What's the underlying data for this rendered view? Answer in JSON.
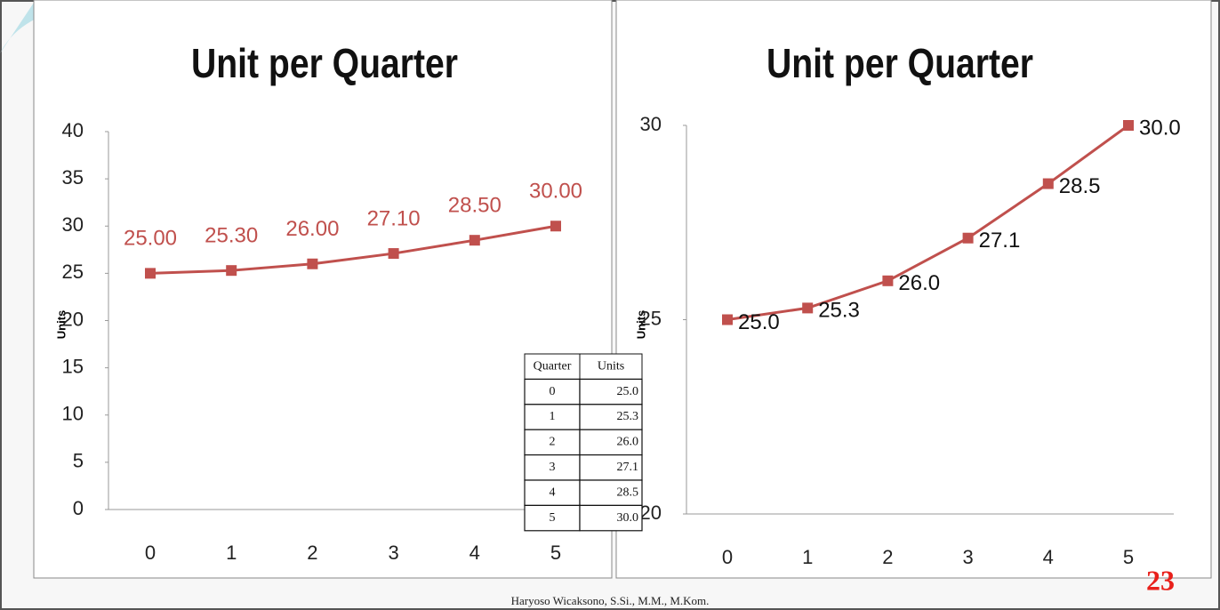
{
  "chart_data": [
    {
      "type": "line",
      "title": "Unit per Quarter",
      "y_label": "Units",
      "categories": [
        "0",
        "1",
        "2",
        "3",
        "4",
        "5"
      ],
      "series": [
        {
          "name": "Units",
          "color": "#c0504d",
          "values": [
            25,
            25.3,
            26,
            27.1,
            28.5,
            30
          ],
          "value_labels": [
            "25.00",
            "25.30",
            "26.00",
            "27.10",
            "28.50",
            "30.00"
          ]
        }
      ],
      "ylim": [
        0,
        40
      ],
      "yticks": [
        0,
        5,
        10,
        15,
        20,
        25,
        30,
        35,
        40
      ],
      "grid": false,
      "legend": false
    },
    {
      "type": "line",
      "title": "Unit per Quarter",
      "y_label": "Units",
      "categories": [
        "0",
        "1",
        "2",
        "3",
        "4",
        "5"
      ],
      "series": [
        {
          "name": "Units",
          "color": "#c0504d",
          "values": [
            25,
            25.3,
            26,
            27.1,
            28.5,
            30
          ],
          "value_labels": [
            "25.0",
            "25.3",
            "26.0",
            "27.1",
            "28.5",
            "30.0"
          ]
        }
      ],
      "ylim": [
        20,
        30
      ],
      "yticks": [
        20,
        25,
        30
      ],
      "grid": false,
      "legend": false
    }
  ],
  "table": {
    "header": [
      "Quarter",
      "Units"
    ],
    "rows": [
      [
        "0",
        "25.0"
      ],
      [
        "1",
        "25.3"
      ],
      [
        "2",
        "26.0"
      ],
      [
        "3",
        "27.1"
      ],
      [
        "4",
        "28.5"
      ],
      [
        "5",
        "30.0"
      ]
    ]
  },
  "footer": "Haryoso Wicaksono, S.Si., M.M., M.Kom.",
  "page_number": "23"
}
